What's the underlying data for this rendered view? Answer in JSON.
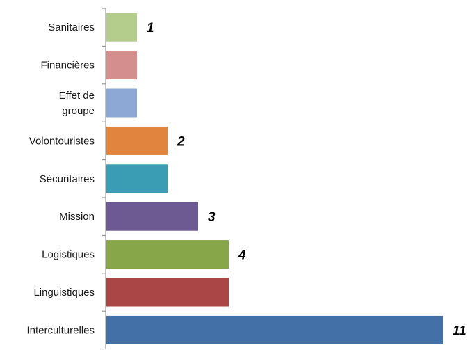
{
  "chart_data": {
    "type": "bar",
    "orientation": "horizontal",
    "categories": [
      [
        "Sanitaires"
      ],
      [
        "Financières"
      ],
      [
        "Effet de",
        "groupe"
      ],
      [
        "Volontouristes"
      ],
      [
        "Sécuritaires"
      ],
      [
        "Mission"
      ],
      [
        "Logistiques"
      ],
      [
        "Linguistiques"
      ],
      [
        "Interculturelles"
      ]
    ],
    "values": [
      1,
      1,
      1,
      2,
      2,
      3,
      4,
      4,
      11
    ],
    "data_labels": [
      "1",
      "",
      "",
      "2",
      "",
      "3",
      "4",
      "",
      "11"
    ],
    "colors": [
      "#B4CC8C",
      "#D48E8E",
      "#8EA8D6",
      "#E0843E",
      "#3A9DB3",
      "#6E5A92",
      "#87A64A",
      "#AA4646",
      "#4470A8"
    ],
    "title": "",
    "xlabel": "",
    "ylabel": "",
    "xlim": [
      0,
      11.2
    ],
    "grid": false,
    "legend": "none",
    "axis_color": "#888888"
  }
}
